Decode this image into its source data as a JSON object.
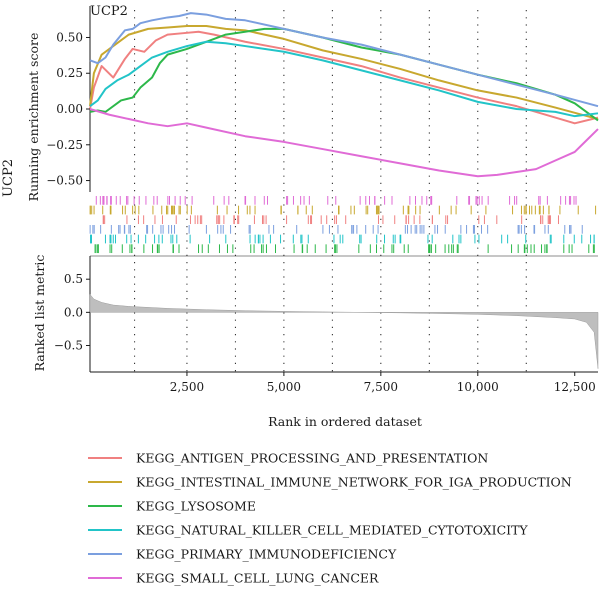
{
  "chart_data": {
    "type": "line",
    "title": "UCP2",
    "left_label": "UCP2",
    "xlabel": "Rank in ordered dataset",
    "ylabel_top": "Running enrichment score",
    "ylabel_bottom": "Ranked list metric",
    "xlim": [
      0,
      13100
    ],
    "ylim_top": [
      -0.58,
      0.72
    ],
    "ylim_bottom": [
      -0.9,
      0.85
    ],
    "x_ticks": [
      {
        "value": 2500,
        "label": "2,500"
      },
      {
        "value": 5000,
        "label": "5,000"
      },
      {
        "value": 7500,
        "label": "7,500"
      },
      {
        "value": 10000,
        "label": "10,000"
      },
      {
        "value": 12500,
        "label": "12,500"
      }
    ],
    "y_ticks_top": [
      {
        "value": 0.5,
        "label": "0.50"
      },
      {
        "value": 0.25,
        "label": "0.25"
      },
      {
        "value": 0.0,
        "label": "0.00"
      },
      {
        "value": -0.25,
        "label": "−0.25"
      },
      {
        "value": -0.5,
        "label": "−0.50"
      }
    ],
    "y_ticks_bottom": [
      {
        "value": 0.5,
        "label": "0.5"
      },
      {
        "value": 0.0,
        "label": "0.0"
      },
      {
        "value": -0.5,
        "label": "−0.5"
      }
    ],
    "vertical_dotted_lines": [
      1150,
      2500,
      3750,
      5000,
      6250,
      7500,
      8750,
      10000,
      11250
    ],
    "grid": false,
    "legend_position": "bottom",
    "series": [
      {
        "name": "KEGG_ANTIGEN_PROCESSING_AND_PRESENTATION",
        "color": "#F08080",
        "points": [
          [
            0,
            0.0
          ],
          [
            100,
            0.15
          ],
          [
            300,
            0.3
          ],
          [
            600,
            0.22
          ],
          [
            900,
            0.35
          ],
          [
            1100,
            0.42
          ],
          [
            1400,
            0.4
          ],
          [
            1700,
            0.48
          ],
          [
            2000,
            0.52
          ],
          [
            2400,
            0.53
          ],
          [
            2800,
            0.54
          ],
          [
            3200,
            0.52
          ],
          [
            4000,
            0.47
          ],
          [
            5000,
            0.42
          ],
          [
            6000,
            0.36
          ],
          [
            7000,
            0.3
          ],
          [
            8000,
            0.22
          ],
          [
            9000,
            0.15
          ],
          [
            10000,
            0.08
          ],
          [
            11000,
            0.02
          ],
          [
            12000,
            -0.06
          ],
          [
            12500,
            -0.1
          ],
          [
            13100,
            -0.06
          ]
        ]
      },
      {
        "name": "KEGG_INTESTINAL_IMMUNE_NETWORK_FOR_IGA_PRODUCTION",
        "color": "#C8A82F",
        "points": [
          [
            0,
            0.02
          ],
          [
            100,
            0.25
          ],
          [
            300,
            0.38
          ],
          [
            500,
            0.42
          ],
          [
            800,
            0.48
          ],
          [
            1000,
            0.52
          ],
          [
            1500,
            0.56
          ],
          [
            2000,
            0.57
          ],
          [
            2500,
            0.58
          ],
          [
            3000,
            0.58
          ],
          [
            3500,
            0.56
          ],
          [
            4000,
            0.55
          ],
          [
            5000,
            0.49
          ],
          [
            6000,
            0.41
          ],
          [
            7000,
            0.35
          ],
          [
            8000,
            0.28
          ],
          [
            9000,
            0.2
          ],
          [
            10000,
            0.13
          ],
          [
            11000,
            0.08
          ],
          [
            12000,
            0.01
          ],
          [
            13100,
            -0.07
          ]
        ]
      },
      {
        "name": "KEGG_LYSOSOME",
        "color": "#2DB84A",
        "points": [
          [
            0,
            -0.02
          ],
          [
            200,
            -0.01
          ],
          [
            400,
            -0.02
          ],
          [
            800,
            0.06
          ],
          [
            1100,
            0.08
          ],
          [
            1300,
            0.15
          ],
          [
            1600,
            0.22
          ],
          [
            1800,
            0.32
          ],
          [
            2000,
            0.38
          ],
          [
            2500,
            0.42
          ],
          [
            3000,
            0.47
          ],
          [
            3500,
            0.52
          ],
          [
            4000,
            0.54
          ],
          [
            4500,
            0.56
          ],
          [
            5000,
            0.56
          ],
          [
            6000,
            0.5
          ],
          [
            7000,
            0.43
          ],
          [
            8000,
            0.38
          ],
          [
            9000,
            0.31
          ],
          [
            10000,
            0.24
          ],
          [
            11000,
            0.18
          ],
          [
            12000,
            0.1
          ],
          [
            12500,
            0.04
          ],
          [
            13100,
            -0.08
          ]
        ]
      },
      {
        "name": "KEGG_NATURAL_KILLER_CELL_MEDIATED_CYTOTOXICITY",
        "color": "#22C4C8",
        "points": [
          [
            0,
            0.02
          ],
          [
            200,
            0.06
          ],
          [
            400,
            0.14
          ],
          [
            700,
            0.2
          ],
          [
            1000,
            0.24
          ],
          [
            1300,
            0.3
          ],
          [
            1600,
            0.36
          ],
          [
            2000,
            0.4
          ],
          [
            2500,
            0.44
          ],
          [
            3000,
            0.47
          ],
          [
            3500,
            0.46
          ],
          [
            4000,
            0.44
          ],
          [
            5000,
            0.4
          ],
          [
            6000,
            0.34
          ],
          [
            7000,
            0.27
          ],
          [
            8000,
            0.2
          ],
          [
            9000,
            0.13
          ],
          [
            10000,
            0.05
          ],
          [
            11000,
            0.0
          ],
          [
            12000,
            -0.02
          ],
          [
            12500,
            -0.05
          ],
          [
            13100,
            -0.03
          ]
        ]
      },
      {
        "name": "KEGG_PRIMARY_IMMUNODEFICIENCY",
        "color": "#7B9FDF",
        "points": [
          [
            0,
            0.34
          ],
          [
            200,
            0.32
          ],
          [
            400,
            0.36
          ],
          [
            600,
            0.45
          ],
          [
            900,
            0.55
          ],
          [
            1100,
            0.56
          ],
          [
            1300,
            0.6
          ],
          [
            1600,
            0.62
          ],
          [
            2000,
            0.64
          ],
          [
            2300,
            0.65
          ],
          [
            2600,
            0.67
          ],
          [
            3000,
            0.66
          ],
          [
            3500,
            0.63
          ],
          [
            4000,
            0.62
          ],
          [
            5000,
            0.56
          ],
          [
            6000,
            0.5
          ],
          [
            7000,
            0.45
          ],
          [
            8000,
            0.38
          ],
          [
            9000,
            0.31
          ],
          [
            10000,
            0.24
          ],
          [
            11000,
            0.17
          ],
          [
            12000,
            0.1
          ],
          [
            13100,
            0.02
          ]
        ]
      },
      {
        "name": "KEGG_SMALL_CELL_LUNG_CANCER",
        "color": "#E06BD6",
        "points": [
          [
            0,
            0.0
          ],
          [
            500,
            -0.04
          ],
          [
            1000,
            -0.07
          ],
          [
            1500,
            -0.1
          ],
          [
            2000,
            -0.12
          ],
          [
            2500,
            -0.1
          ],
          [
            3000,
            -0.13
          ],
          [
            4000,
            -0.19
          ],
          [
            5000,
            -0.23
          ],
          [
            6000,
            -0.28
          ],
          [
            7000,
            -0.33
          ],
          [
            8000,
            -0.38
          ],
          [
            9000,
            -0.43
          ],
          [
            10000,
            -0.47
          ],
          [
            10500,
            -0.46
          ],
          [
            11000,
            -0.44
          ],
          [
            11500,
            -0.42
          ],
          [
            12000,
            -0.36
          ],
          [
            12500,
            -0.3
          ],
          [
            12800,
            -0.22
          ],
          [
            13100,
            -0.14
          ]
        ]
      }
    ],
    "ranked_metric": {
      "points": [
        [
          0,
          0.27
        ],
        [
          100,
          0.2
        ],
        [
          300,
          0.15
        ],
        [
          600,
          0.11
        ],
        [
          1000,
          0.09
        ],
        [
          2000,
          0.06
        ],
        [
          3000,
          0.04
        ],
        [
          4000,
          0.025
        ],
        [
          5000,
          0.015
        ],
        [
          6000,
          0.007
        ],
        [
          7000,
          0.0
        ],
        [
          8000,
          -0.008
        ],
        [
          9000,
          -0.018
        ],
        [
          10000,
          -0.03
        ],
        [
          11000,
          -0.05
        ],
        [
          12000,
          -0.08
        ],
        [
          12500,
          -0.1
        ],
        [
          12800,
          -0.15
        ],
        [
          13000,
          -0.3
        ],
        [
          13100,
          -0.85
        ]
      ],
      "fill_color": "#BEBEBE"
    }
  }
}
